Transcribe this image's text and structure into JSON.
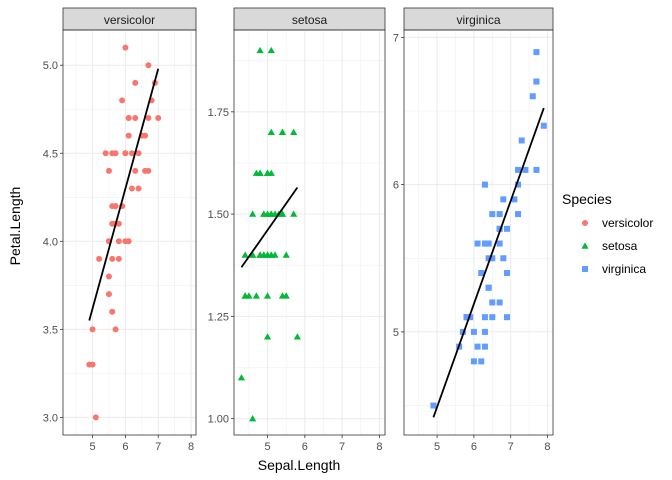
{
  "chart_data": {
    "type": "scatter",
    "xlabel": "Sepal.Length",
    "ylabel": "Petal.Length",
    "legend": {
      "title": "Species",
      "position": "right",
      "entries": [
        {
          "label": "versicolor",
          "shape": "circle",
          "color": "#F8766D"
        },
        {
          "label": "setosa",
          "shape": "triangle",
          "color": "#00BA38"
        },
        {
          "label": "virginica",
          "shape": "square",
          "color": "#619CFF"
        }
      ]
    },
    "facets": [
      {
        "strip": "versicolor",
        "color": "#F8766D",
        "shape": "circle",
        "xlim": [
          4.1,
          8.15
        ],
        "ylim": [
          2.9,
          5.2
        ],
        "xticks": [
          "5",
          "6",
          "7",
          "8"
        ],
        "yticks": [
          "3.0",
          "3.5",
          "4.0",
          "4.5",
          "5.0"
        ],
        "ytick_values": [
          3.0,
          3.5,
          4.0,
          4.5,
          5.0
        ],
        "trend_line": [
          [
            4.9,
            3.55
          ],
          [
            7.0,
            4.98
          ]
        ],
        "points": [
          [
            7.0,
            4.7
          ],
          [
            6.4,
            4.5
          ],
          [
            6.9,
            4.9
          ],
          [
            5.5,
            4.0
          ],
          [
            6.5,
            4.6
          ],
          [
            5.7,
            4.5
          ],
          [
            6.3,
            4.7
          ],
          [
            4.9,
            3.3
          ],
          [
            6.6,
            4.6
          ],
          [
            5.2,
            3.9
          ],
          [
            5.0,
            3.5
          ],
          [
            5.9,
            4.2
          ],
          [
            6.0,
            4.0
          ],
          [
            6.1,
            4.7
          ],
          [
            5.6,
            3.6
          ],
          [
            6.7,
            4.4
          ],
          [
            5.6,
            4.5
          ],
          [
            5.8,
            4.1
          ],
          [
            6.2,
            4.5
          ],
          [
            5.6,
            3.9
          ],
          [
            5.9,
            4.8
          ],
          [
            6.1,
            4.0
          ],
          [
            6.3,
            4.9
          ],
          [
            6.1,
            4.7
          ],
          [
            6.4,
            4.3
          ],
          [
            6.6,
            4.4
          ],
          [
            6.8,
            4.8
          ],
          [
            6.7,
            5.0
          ],
          [
            6.0,
            4.5
          ],
          [
            5.7,
            3.5
          ],
          [
            5.5,
            3.8
          ],
          [
            5.5,
            3.7
          ],
          [
            5.8,
            3.9
          ],
          [
            6.0,
            5.1
          ],
          [
            5.4,
            4.5
          ],
          [
            6.0,
            4.5
          ],
          [
            6.7,
            4.7
          ],
          [
            6.3,
            4.4
          ],
          [
            5.6,
            4.1
          ],
          [
            5.5,
            4.0
          ],
          [
            5.5,
            4.4
          ],
          [
            6.1,
            4.6
          ],
          [
            5.8,
            4.0
          ],
          [
            5.0,
            3.3
          ],
          [
            5.6,
            4.2
          ],
          [
            5.7,
            4.2
          ],
          [
            5.7,
            4.2
          ],
          [
            6.2,
            4.3
          ],
          [
            5.1,
            3.0
          ],
          [
            5.7,
            4.1
          ]
        ]
      },
      {
        "strip": "setosa",
        "color": "#00BA38",
        "shape": "triangle",
        "xlim": [
          4.1,
          8.15
        ],
        "ylim": [
          0.96,
          1.95
        ],
        "xticks": [
          "5",
          "6",
          "7",
          "8"
        ],
        "yticks": [
          "1.00",
          "1.25",
          "1.50",
          "1.75"
        ],
        "ytick_values": [
          1.0,
          1.25,
          1.5,
          1.75
        ],
        "trend_line": [
          [
            4.3,
            1.37
          ],
          [
            5.8,
            1.565
          ]
        ],
        "points": [
          [
            5.1,
            1.4
          ],
          [
            4.9,
            1.4
          ],
          [
            4.7,
            1.3
          ],
          [
            4.6,
            1.5
          ],
          [
            5.0,
            1.4
          ],
          [
            5.4,
            1.7
          ],
          [
            4.6,
            1.4
          ],
          [
            5.0,
            1.5
          ],
          [
            4.4,
            1.4
          ],
          [
            4.9,
            1.5
          ],
          [
            5.4,
            1.5
          ],
          [
            4.8,
            1.6
          ],
          [
            4.8,
            1.4
          ],
          [
            4.3,
            1.1
          ],
          [
            5.8,
            1.2
          ],
          [
            5.7,
            1.5
          ],
          [
            5.4,
            1.3
          ],
          [
            5.1,
            1.4
          ],
          [
            5.7,
            1.7
          ],
          [
            5.1,
            1.5
          ],
          [
            5.4,
            1.7
          ],
          [
            5.1,
            1.5
          ],
          [
            4.6,
            1.0
          ],
          [
            5.1,
            1.7
          ],
          [
            4.8,
            1.9
          ],
          [
            5.0,
            1.6
          ],
          [
            5.0,
            1.6
          ],
          [
            5.2,
            1.5
          ],
          [
            5.2,
            1.4
          ],
          [
            4.7,
            1.6
          ],
          [
            4.8,
            1.6
          ],
          [
            5.4,
            1.5
          ],
          [
            5.2,
            1.5
          ],
          [
            5.5,
            1.4
          ],
          [
            4.9,
            1.5
          ],
          [
            5.0,
            1.2
          ],
          [
            5.5,
            1.3
          ],
          [
            4.9,
            1.4
          ],
          [
            4.4,
            1.3
          ],
          [
            5.1,
            1.5
          ],
          [
            5.0,
            1.3
          ],
          [
            4.5,
            1.3
          ],
          [
            4.4,
            1.3
          ],
          [
            5.0,
            1.6
          ],
          [
            5.1,
            1.9
          ],
          [
            4.8,
            1.4
          ],
          [
            5.1,
            1.6
          ],
          [
            4.6,
            1.4
          ],
          [
            5.3,
            1.5
          ],
          [
            5.0,
            1.4
          ]
        ]
      },
      {
        "strip": "virginica",
        "color": "#619CFF",
        "shape": "square",
        "xlim": [
          4.1,
          8.15
        ],
        "ylim": [
          4.3,
          7.05
        ],
        "xticks": [
          "5",
          "6",
          "7",
          "8"
        ],
        "yticks": [
          "5",
          "6",
          "7"
        ],
        "ytick_values": [
          5,
          6,
          7
        ],
        "trend_line": [
          [
            4.9,
            4.42
          ],
          [
            7.9,
            6.52
          ]
        ],
        "points": [
          [
            6.3,
            6.0
          ],
          [
            5.8,
            5.1
          ],
          [
            7.1,
            5.9
          ],
          [
            6.3,
            5.6
          ],
          [
            6.5,
            5.8
          ],
          [
            7.6,
            6.6
          ],
          [
            4.9,
            4.5
          ],
          [
            7.3,
            6.3
          ],
          [
            6.7,
            5.8
          ],
          [
            7.2,
            6.1
          ],
          [
            6.5,
            5.1
          ],
          [
            6.4,
            5.3
          ],
          [
            6.8,
            5.5
          ],
          [
            5.7,
            5.0
          ],
          [
            5.8,
            5.1
          ],
          [
            6.4,
            5.3
          ],
          [
            6.5,
            5.5
          ],
          [
            7.7,
            6.7
          ],
          [
            7.7,
            6.9
          ],
          [
            6.0,
            5.0
          ],
          [
            6.9,
            5.7
          ],
          [
            5.6,
            4.9
          ],
          [
            7.7,
            6.7
          ],
          [
            6.3,
            4.9
          ],
          [
            6.7,
            5.7
          ],
          [
            7.2,
            6.0
          ],
          [
            6.2,
            4.8
          ],
          [
            6.1,
            4.9
          ],
          [
            6.4,
            5.6
          ],
          [
            7.2,
            5.8
          ],
          [
            7.4,
            6.1
          ],
          [
            7.9,
            6.4
          ],
          [
            6.4,
            5.6
          ],
          [
            6.3,
            5.1
          ],
          [
            6.1,
            5.6
          ],
          [
            7.7,
            6.1
          ],
          [
            6.3,
            5.6
          ],
          [
            6.4,
            5.5
          ],
          [
            6.0,
            4.8
          ],
          [
            6.9,
            5.4
          ],
          [
            6.7,
            5.6
          ],
          [
            6.9,
            5.1
          ],
          [
            5.8,
            5.1
          ],
          [
            6.8,
            5.9
          ],
          [
            6.7,
            5.7
          ],
          [
            6.7,
            5.2
          ],
          [
            6.3,
            5.0
          ],
          [
            6.5,
            5.2
          ],
          [
            6.2,
            5.4
          ],
          [
            5.9,
            5.1
          ]
        ]
      }
    ]
  }
}
